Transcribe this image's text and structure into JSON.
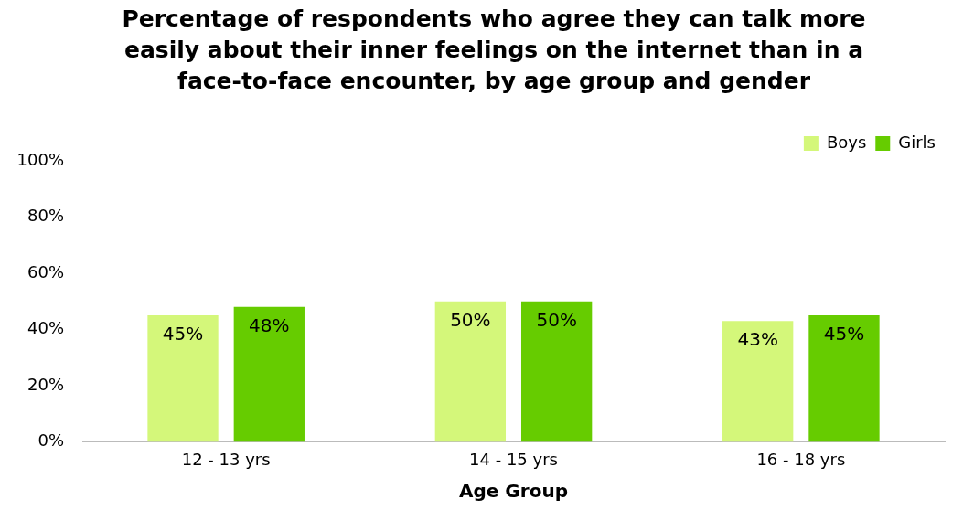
{
  "chart_data": {
    "type": "bar",
    "title": "Percentage of respondents who agree they can talk more easily about their inner feelings on the internet than in a face-to-face encounter, by age group and gender",
    "xlabel": "Age Group",
    "categories": [
      "12 - 13 yrs",
      "14 - 15 yrs",
      "16 - 18 yrs"
    ],
    "series": [
      {
        "name": "Boys",
        "color": "#d4f77a",
        "values": [
          45,
          50,
          43
        ],
        "value_labels": [
          "45%",
          "50%",
          "43%"
        ]
      },
      {
        "name": "Girls",
        "color": "#66cc00",
        "values": [
          48,
          50,
          45
        ],
        "value_labels": [
          "48%",
          "50%",
          "45%"
        ]
      }
    ],
    "ylim": [
      0,
      100
    ],
    "yticks": [
      {
        "value": 0,
        "label": "0%"
      },
      {
        "value": 20,
        "label": "20%"
      },
      {
        "value": 40,
        "label": "40%"
      },
      {
        "value": 60,
        "label": "60%"
      },
      {
        "value": 80,
        "label": "80%"
      },
      {
        "value": 100,
        "label": "100%"
      }
    ],
    "grid": false,
    "legend": "top right"
  }
}
